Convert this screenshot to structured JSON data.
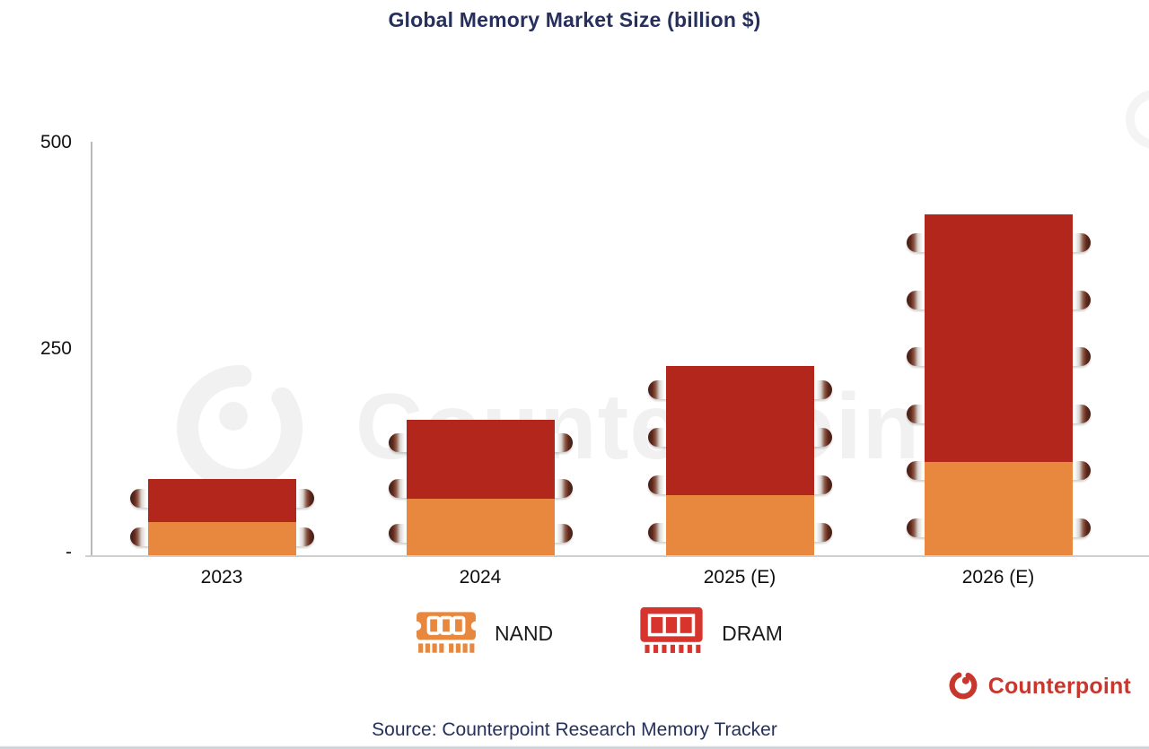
{
  "title": "Global Memory Market Size (billion $)",
  "source": "Source: Counterpoint Research Memory Tracker",
  "watermark": "Counterpoint",
  "brand": {
    "name": "Counterpoint"
  },
  "colors": {
    "nand": "#e8883f",
    "dram": "#b2261b",
    "legend_nand": "#e8883f",
    "legend_dram": "#d6342c",
    "title_navy": "#26305c",
    "brand_red": "#c8372d",
    "watermark_gray": "#f1f1f1"
  },
  "y_axis": {
    "ticks": {
      "top": "500",
      "mid": "250",
      "zero": "-"
    }
  },
  "legend": [
    {
      "label": "NAND",
      "icon": "nand-chip-icon"
    },
    {
      "label": "DRAM",
      "icon": "dram-chip-icon"
    }
  ],
  "chart_data": {
    "type": "bar",
    "stacked": true,
    "title": "Global Memory Market Size (billion $)",
    "categories": [
      "2023",
      "2024",
      "2025 (E)",
      "2026 (E)"
    ],
    "series": [
      {
        "name": "NAND",
        "color": "#e8883f",
        "values": [
          41,
          70,
          74,
          114
        ]
      },
      {
        "name": "DRAM",
        "color": "#b2261b",
        "values": [
          53,
          95,
          156,
          300
        ]
      }
    ],
    "totals": [
      94,
      165,
      230,
      414
    ],
    "ylim": [
      0,
      500
    ],
    "y_ticks": [
      0,
      250,
      500
    ],
    "xlabel": "",
    "ylabel": "",
    "grid": false,
    "legend_position": "bottom"
  }
}
